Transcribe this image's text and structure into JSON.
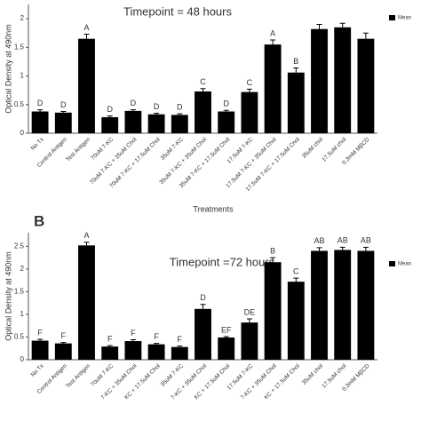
{
  "chart_data": [
    {
      "type": "bar",
      "title": "Timepoint = 48 hours",
      "x_label": "Treatments",
      "y_label": "Optical Density at 490nm",
      "categories": [
        "No Tx",
        "Control Antigen",
        "Test Antigen",
        "70uM 7-KC",
        "70uM 7-KC + 35uM Chol",
        "70uM 7-KC + 17.5uM Chol",
        "35uM 7-KC",
        "35uM 7-KC + 35uM Chol",
        "35uM 7-KC + 17.5uM Chol",
        "17.5uM 7-KC",
        "17.5uM 7-KC + 35uM Chol",
        "17.5uM 7-KC + 17.5uM Chol",
        "35uM chol",
        "17.5uM chol",
        "0.3mM MβCD"
      ],
      "series": [
        {
          "name": "Mean",
          "color": "#000000",
          "values": [
            0.38,
            0.36,
            1.65,
            0.28,
            0.39,
            0.33,
            0.32,
            0.73,
            0.38,
            0.72,
            1.55,
            1.06,
            1.82,
            1.85,
            1.65
          ],
          "errors": [
            0.03,
            0.02,
            0.08,
            0.02,
            0.02,
            0.02,
            0.02,
            0.05,
            0.02,
            0.05,
            0.08,
            0.08,
            0.08,
            0.07,
            0.1
          ],
          "annotations": [
            "D",
            "D",
            "A",
            "D",
            "D",
            "D",
            "D",
            "C",
            "D",
            "C",
            "A",
            "B",
            null,
            null,
            null
          ]
        }
      ],
      "ylim": [
        0,
        2.25
      ],
      "yticks": [
        0,
        0.5,
        1,
        1.5,
        2
      ],
      "legend": "top-right"
    },
    {
      "type": "bar",
      "panel_label": "B",
      "title": "Timepoint =72 hours",
      "y_label": "Optical Density at 490nm",
      "categories": [
        "No Tx",
        "Control Antigen",
        "Test Antigen",
        "70uM 7-KC",
        "7-KC + 35uM Chol",
        "KC + 17.5uM Chol",
        "35uM 7-KC",
        "7-KC + 35uM Chol",
        "KC + 17.5uM Chol",
        "17.5uM 7-KC",
        "7-KC + 35uM Chol",
        "KC + 17.5uM Chol",
        "35uM chol",
        "17.5uM chol",
        "0.3mM MβCD"
      ],
      "series": [
        {
          "name": "Mean",
          "color": "#000000",
          "values": [
            0.42,
            0.36,
            2.52,
            0.29,
            0.41,
            0.34,
            0.28,
            1.12,
            0.49,
            0.82,
            2.15,
            1.72,
            2.4,
            2.42,
            2.4
          ],
          "errors": [
            0.03,
            0.02,
            0.07,
            0.02,
            0.03,
            0.02,
            0.02,
            0.1,
            0.02,
            0.08,
            0.1,
            0.08,
            0.07,
            0.06,
            0.08
          ],
          "annotations": [
            "F",
            "F",
            "A",
            "F",
            "F",
            "F",
            "F",
            "D",
            "EF",
            "DE",
            "B",
            "C",
            "AB",
            "AB",
            "AB"
          ]
        }
      ],
      "ylim": [
        0,
        2.8
      ],
      "yticks": [
        0,
        0.5,
        1,
        1.5,
        2,
        2.5
      ],
      "legend": "top-right"
    }
  ]
}
